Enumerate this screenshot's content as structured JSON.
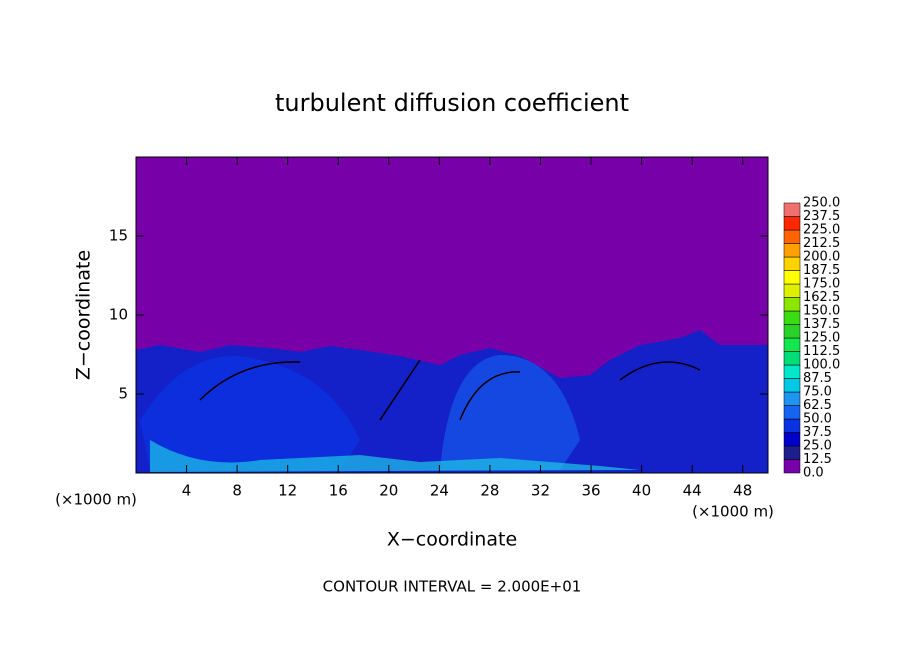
{
  "chart_data": {
    "type": "contour",
    "title": "turbulent diffusion coefficient",
    "xlabel": "X−coordinate",
    "ylabel": "Z−coordinate",
    "x_unit_label": "(×1000 m)",
    "footnote": "CONTOUR INTERVAL = 2.000E+01",
    "xlim": [
      0,
      50
    ],
    "xticks": [
      4,
      8,
      12,
      16,
      20,
      24,
      28,
      32,
      36,
      40,
      44,
      48
    ],
    "ylim": [
      0,
      20
    ],
    "yticks": [
      5,
      10,
      15
    ],
    "colorbar": {
      "levels": [
        {
          "value": 0,
          "label": "0.0"
        },
        {
          "value": 12.5,
          "label": "12.5"
        },
        {
          "value": 25,
          "label": "25.0"
        },
        {
          "value": 37.5,
          "label": "37.5"
        },
        {
          "value": 50,
          "label": "50.0"
        },
        {
          "value": 62.5,
          "label": "62.5"
        },
        {
          "value": 75,
          "label": "75.0"
        },
        {
          "value": 87.5,
          "label": "87.5"
        },
        {
          "value": 100,
          "label": "100.0"
        },
        {
          "value": 112.5,
          "label": "112.5"
        },
        {
          "value": 125,
          "label": "125.0"
        },
        {
          "value": 137.5,
          "label": "137.5"
        },
        {
          "value": 150,
          "label": "150.0"
        },
        {
          "value": 162.5,
          "label": "162.5"
        },
        {
          "value": 175,
          "label": "175.0"
        },
        {
          "value": 187.5,
          "label": "187.5"
        },
        {
          "value": 200,
          "label": "200.0"
        },
        {
          "value": 212.5,
          "label": "212.5"
        },
        {
          "value": 225,
          "label": "225.0"
        },
        {
          "value": 237.5,
          "label": "237.5"
        },
        {
          "value": 250,
          "label": "250.0"
        }
      ],
      "colors": [
        "#7800a8",
        "#1e1e8c",
        "#0000c8",
        "#0a32e1",
        "#1464f0",
        "#1e96f0",
        "#00c8e6",
        "#00e6c8",
        "#00dc78",
        "#14e650",
        "#28d228",
        "#3cdc14",
        "#8ce600",
        "#dcf000",
        "#ffff00",
        "#ffd200",
        "#ffa000",
        "#ff6400",
        "#ff2800",
        "#f07070"
      ]
    }
  }
}
